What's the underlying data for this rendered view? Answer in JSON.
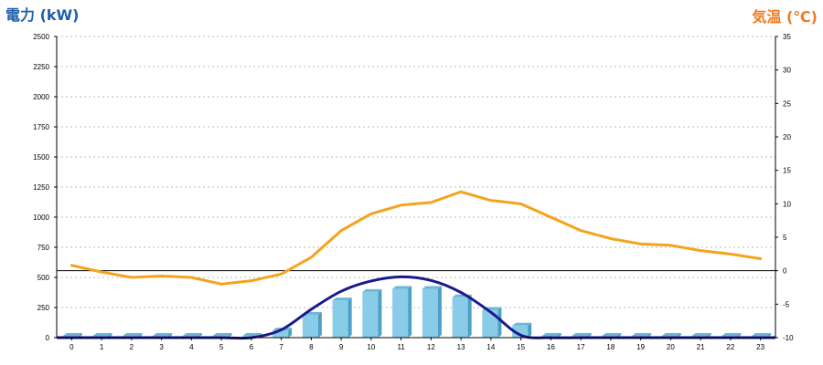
{
  "chart_data": {
    "type": "bar",
    "title_left": "電力 (kW)",
    "title_right": "気温 (℃)",
    "x": [
      "0",
      "1",
      "2",
      "3",
      "4",
      "5",
      "6",
      "7",
      "8",
      "9",
      "10",
      "11",
      "12",
      "13",
      "14",
      "15",
      "16",
      "17",
      "18",
      "19",
      "20",
      "21",
      "22",
      "23"
    ],
    "left_axis": {
      "min": 0,
      "max": 2500,
      "ticks": [
        0,
        250,
        500,
        750,
        1000,
        1250,
        1500,
        1750,
        2000,
        2250,
        2500
      ]
    },
    "right_axis": {
      "min": -10,
      "max": 35,
      "ticks": [
        -10,
        -5,
        0,
        5,
        10,
        15,
        20,
        25,
        30,
        35
      ]
    },
    "bars": {
      "axis": "left",
      "color": "#88cce8",
      "values": [
        15,
        15,
        15,
        15,
        15,
        15,
        15,
        60,
        190,
        310,
        380,
        405,
        405,
        335,
        230,
        100,
        15,
        15,
        15,
        15,
        15,
        15,
        15,
        15
      ]
    },
    "curve": {
      "axis": "left",
      "color": "#1a1a8c",
      "values": [
        0,
        0,
        0,
        0,
        0,
        0,
        0,
        65,
        235,
        385,
        470,
        505,
        475,
        375,
        210,
        20,
        0,
        0,
        0,
        0,
        0,
        0,
        0,
        0
      ]
    },
    "temperature": {
      "axis": "right",
      "color": "#f5a31a",
      "values": [
        0.8,
        -0.2,
        -1.0,
        -0.8,
        -1.0,
        -2.0,
        -1.5,
        -0.5,
        2.0,
        6.0,
        8.5,
        9.8,
        10.2,
        11.8,
        10.5,
        10.0,
        8.0,
        6.0,
        4.8,
        4.0,
        3.8,
        3.0,
        2.5,
        1.8
      ]
    },
    "zero_line": {
      "axis": "right",
      "value": 0
    },
    "grid": true
  }
}
